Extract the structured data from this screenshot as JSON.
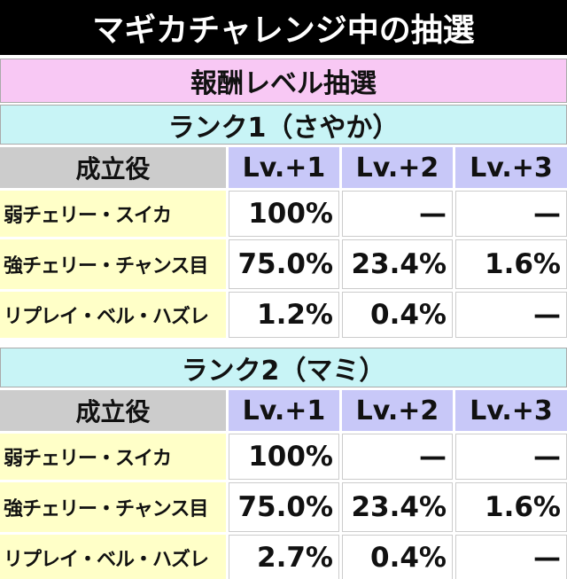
{
  "header": {
    "title": "マギカチャレンジ中の抽選"
  },
  "subtitle": "報酬レベル抽選",
  "sections": [
    {
      "title": "ランク1（さやか）",
      "columns": [
        "成立役",
        "Lv.+1",
        "Lv.+2",
        "Lv.+3"
      ],
      "rows": [
        [
          "弱チェリー・スイカ",
          "100%",
          "—",
          "—"
        ],
        [
          "強チェリー・チャンス目",
          "75.0%",
          "23.4%",
          "1.6%"
        ],
        [
          "リプレイ・ベル・ハズレ",
          "1.2%",
          "0.4%",
          "—"
        ]
      ]
    },
    {
      "title": "ランク2（マミ）",
      "columns": [
        "成立役",
        "Lv.+1",
        "Lv.+2",
        "Lv.+3"
      ],
      "rows": [
        [
          "弱チェリー・スイカ",
          "100%",
          "—",
          "—"
        ],
        [
          "強チェリー・チャンス目",
          "75.0%",
          "23.4%",
          "1.6%"
        ],
        [
          "リプレイ・ベル・ハズレ",
          "2.7%",
          "0.4%",
          "—"
        ]
      ]
    }
  ]
}
